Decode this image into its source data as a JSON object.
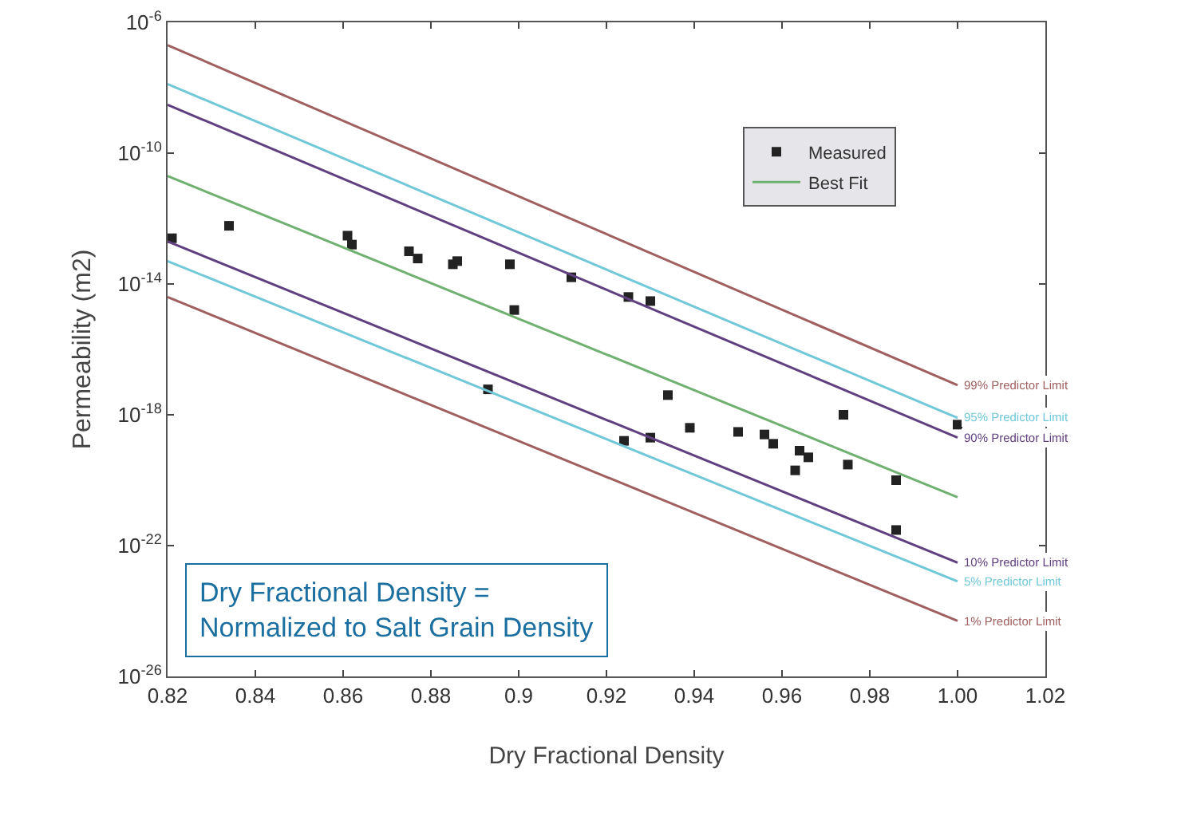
{
  "chart_data": {
    "type": "scatter",
    "xlabel": "Dry Fractional Density",
    "ylabel": "Permeability (m2)",
    "annotations": [
      "Dry Fractional Density =\nNormalized to Salt Grain Density"
    ],
    "xlim": [
      0.82,
      1.02
    ],
    "xticks": [
      0.82,
      0.84,
      0.86,
      0.88,
      {
        "value": 0.9,
        "label": "0.9"
      },
      0.92,
      0.94,
      0.96,
      0.98,
      {
        "value": 1.0,
        "label": "1.00"
      },
      1.02
    ],
    "ylim": [
      1e-26,
      1e-06
    ],
    "yticks": [
      {
        "value": 1e-26,
        "label": "10$^{-26}$"
      },
      {
        "value": 1e-22,
        "label": "10$^{-22}$"
      },
      {
        "value": 1e-18,
        "label": "10$^{-18}$"
      },
      {
        "value": 1e-14,
        "label": "10$^{-14}$"
      },
      {
        "value": 1e-10,
        "label": "10$^{-10}$"
      },
      {
        "value": 1e-06,
        "label": "10$^{-6}$"
      }
    ],
    "log": "y",
    "grid": false,
    "legend": "top right",
    "line_style": "solid",
    "series": [
      {
        "name": "Measured",
        "marker": "square",
        "color": "#222222",
        "x": [
          0.821,
          0.834,
          0.861,
          0.862,
          0.875,
          0.877,
          0.885,
          0.886,
          0.898,
          0.899,
          0.912,
          0.925,
          0.93,
          0.893,
          0.934,
          0.939,
          0.924,
          0.93,
          0.95,
          0.956,
          0.958,
          0.964,
          0.966,
          0.963,
          0.974,
          0.975,
          0.986,
          0.986,
          1.0
        ],
        "values": [
          2.5e-13,
          6e-13,
          3e-13,
          1.6e-13,
          1e-13,
          6e-14,
          4e-14,
          5e-14,
          4e-14,
          1.6e-15,
          1.6e-14,
          4e-15,
          3e-15,
          6e-18,
          4e-18,
          4e-19,
          1.6e-19,
          2e-19,
          3e-19,
          2.5e-19,
          1.3e-19,
          8e-20,
          5e-20,
          2e-20,
          1e-18,
          3e-20,
          1e-20,
          3e-22,
          5e-19
        ]
      },
      {
        "name": "Best Fit",
        "type": "line",
        "color": "#70b070",
        "x": [
          0.82,
          1.0
        ],
        "values": [
          2e-11,
          3e-21
        ]
      },
      {
        "name": "99% Predictor Limit",
        "type": "line",
        "color": "#a06060",
        "x": [
          0.82,
          1.0
        ],
        "values": [
          2e-07,
          8e-18
        ]
      },
      {
        "name": "95% Predictor Limit",
        "type": "line",
        "color": "#70c8d8",
        "x": [
          0.82,
          1.0
        ],
        "values": [
          1.3e-08,
          8e-19
        ]
      },
      {
        "name": "90% Predictor Limit",
        "type": "line",
        "color": "#604080",
        "x": [
          0.82,
          1.0
        ],
        "values": [
          3e-09,
          2e-19
        ]
      },
      {
        "name": "10% Predictor Limit",
        "type": "line",
        "color": "#604080",
        "x": [
          0.82,
          1.0
        ],
        "values": [
          2e-13,
          3e-23
        ]
      },
      {
        "name": "5% Predictor Limit",
        "type": "line",
        "color": "#70c8d8",
        "x": [
          0.82,
          1.0
        ],
        "values": [
          5e-14,
          8e-24
        ]
      },
      {
        "name": "1% Predictor Limit",
        "type": "line",
        "color": "#a06060",
        "x": [
          0.82,
          1.0
        ],
        "values": [
          4e-15,
          5e-25
        ]
      }
    ]
  }
}
